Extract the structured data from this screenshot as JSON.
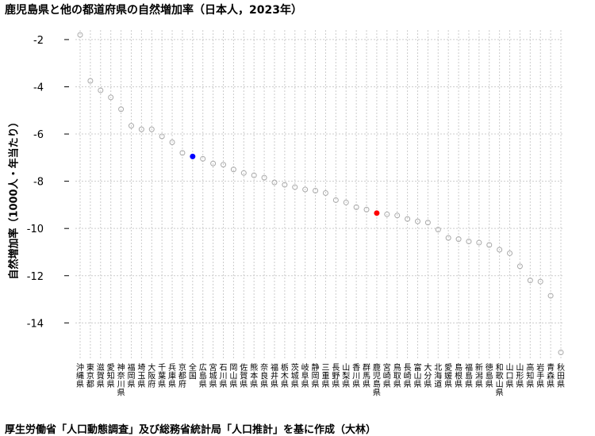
{
  "title": "鹿児島県と他の都道府県の自然増加率（日本人，2023年）",
  "caption": "厚生労働省「人口動態調査」及び総務省統計局「人口推計」を基に作成（大林）",
  "chart_data": {
    "type": "scatter",
    "ylabel": "自然増加率（1000人・年当たり）",
    "xlabel": "",
    "ylim": [
      -15.5,
      -1.6
    ],
    "yticks": [
      -2,
      -4,
      -6,
      -8,
      -10,
      -12,
      -14
    ],
    "grid": true,
    "colors": {
      "default": "#aaaaaa",
      "national": "#0000ff",
      "kagoshima": "#ff0000"
    },
    "points": [
      {
        "label": "沖縄県",
        "value": -1.8,
        "highlight": "none"
      },
      {
        "label": "東京都",
        "value": -3.75,
        "highlight": "none"
      },
      {
        "label": "滋賀県",
        "value": -4.15,
        "highlight": "none"
      },
      {
        "label": "愛知県",
        "value": -4.45,
        "highlight": "none"
      },
      {
        "label": "神奈川県",
        "value": -4.95,
        "highlight": "none"
      },
      {
        "label": "福岡県",
        "value": -5.65,
        "highlight": "none"
      },
      {
        "label": "埼玉県",
        "value": -5.8,
        "highlight": "none"
      },
      {
        "label": "大阪府",
        "value": -5.8,
        "highlight": "none"
      },
      {
        "label": "千葉県",
        "value": -6.1,
        "highlight": "none"
      },
      {
        "label": "兵庫県",
        "value": -6.35,
        "highlight": "none"
      },
      {
        "label": "京都府",
        "value": -6.8,
        "highlight": "none"
      },
      {
        "label": "全国",
        "value": -6.95,
        "highlight": "national"
      },
      {
        "label": "広島県",
        "value": -7.05,
        "highlight": "none"
      },
      {
        "label": "宮城県",
        "value": -7.25,
        "highlight": "none"
      },
      {
        "label": "石川県",
        "value": -7.3,
        "highlight": "none"
      },
      {
        "label": "岡山県",
        "value": -7.5,
        "highlight": "none"
      },
      {
        "label": "佐賀県",
        "value": -7.65,
        "highlight": "none"
      },
      {
        "label": "熊本県",
        "value": -7.75,
        "highlight": "none"
      },
      {
        "label": "奈良県",
        "value": -7.85,
        "highlight": "none"
      },
      {
        "label": "福井県",
        "value": -8.05,
        "highlight": "none"
      },
      {
        "label": "栃木県",
        "value": -8.15,
        "highlight": "none"
      },
      {
        "label": "茨城県",
        "value": -8.25,
        "highlight": "none"
      },
      {
        "label": "岐阜県",
        "value": -8.35,
        "highlight": "none"
      },
      {
        "label": "静岡県",
        "value": -8.4,
        "highlight": "none"
      },
      {
        "label": "三重県",
        "value": -8.5,
        "highlight": "none"
      },
      {
        "label": "長野県",
        "value": -8.8,
        "highlight": "none"
      },
      {
        "label": "山梨県",
        "value": -8.9,
        "highlight": "none"
      },
      {
        "label": "香川県",
        "value": -9.1,
        "highlight": "none"
      },
      {
        "label": "群馬県",
        "value": -9.2,
        "highlight": "none"
      },
      {
        "label": "鹿児島県",
        "value": -9.35,
        "highlight": "kagoshima"
      },
      {
        "label": "宮崎県",
        "value": -9.4,
        "highlight": "none"
      },
      {
        "label": "鳥取県",
        "value": -9.45,
        "highlight": "none"
      },
      {
        "label": "長崎県",
        "value": -9.6,
        "highlight": "none"
      },
      {
        "label": "富山県",
        "value": -9.7,
        "highlight": "none"
      },
      {
        "label": "大分県",
        "value": -9.75,
        "highlight": "none"
      },
      {
        "label": "北海道",
        "value": -10.05,
        "highlight": "none"
      },
      {
        "label": "愛媛県",
        "value": -10.4,
        "highlight": "none"
      },
      {
        "label": "島根県",
        "value": -10.45,
        "highlight": "none"
      },
      {
        "label": "福島県",
        "value": -10.55,
        "highlight": "none"
      },
      {
        "label": "新潟県",
        "value": -10.6,
        "highlight": "none"
      },
      {
        "label": "徳島県",
        "value": -10.7,
        "highlight": "none"
      },
      {
        "label": "和歌山県",
        "value": -10.9,
        "highlight": "none"
      },
      {
        "label": "山口県",
        "value": -11.05,
        "highlight": "none"
      },
      {
        "label": "山形県",
        "value": -11.6,
        "highlight": "none"
      },
      {
        "label": "高知県",
        "value": -12.2,
        "highlight": "none"
      },
      {
        "label": "岩手県",
        "value": -12.25,
        "highlight": "none"
      },
      {
        "label": "青森県",
        "value": -12.85,
        "highlight": "none"
      },
      {
        "label": "秋田県",
        "value": -15.25,
        "highlight": "none"
      }
    ]
  }
}
